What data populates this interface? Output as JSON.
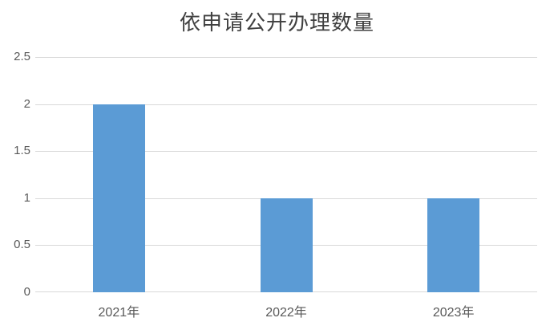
{
  "colors": {
    "background": "#FFFFFF",
    "bar": "#5B9BD5",
    "gridline": "#D9D9D9",
    "axis_line": "#D9D9D9",
    "title_text": "#404040",
    "tick_text": "#595959"
  },
  "chart_data": {
    "type": "bar",
    "title": "依申请公开办理数量",
    "categories": [
      "2021年",
      "2022年",
      "2023年"
    ],
    "values": [
      2,
      1,
      1
    ],
    "xlabel": "",
    "ylabel": "",
    "ylim": [
      0,
      2.5
    ],
    "ytick_interval": 0.5,
    "ytick_labels": [
      "0",
      "0.5",
      "1",
      "1.5",
      "2",
      "2.5"
    ],
    "grid": true,
    "legend_position": "none",
    "data_labels": false
  }
}
